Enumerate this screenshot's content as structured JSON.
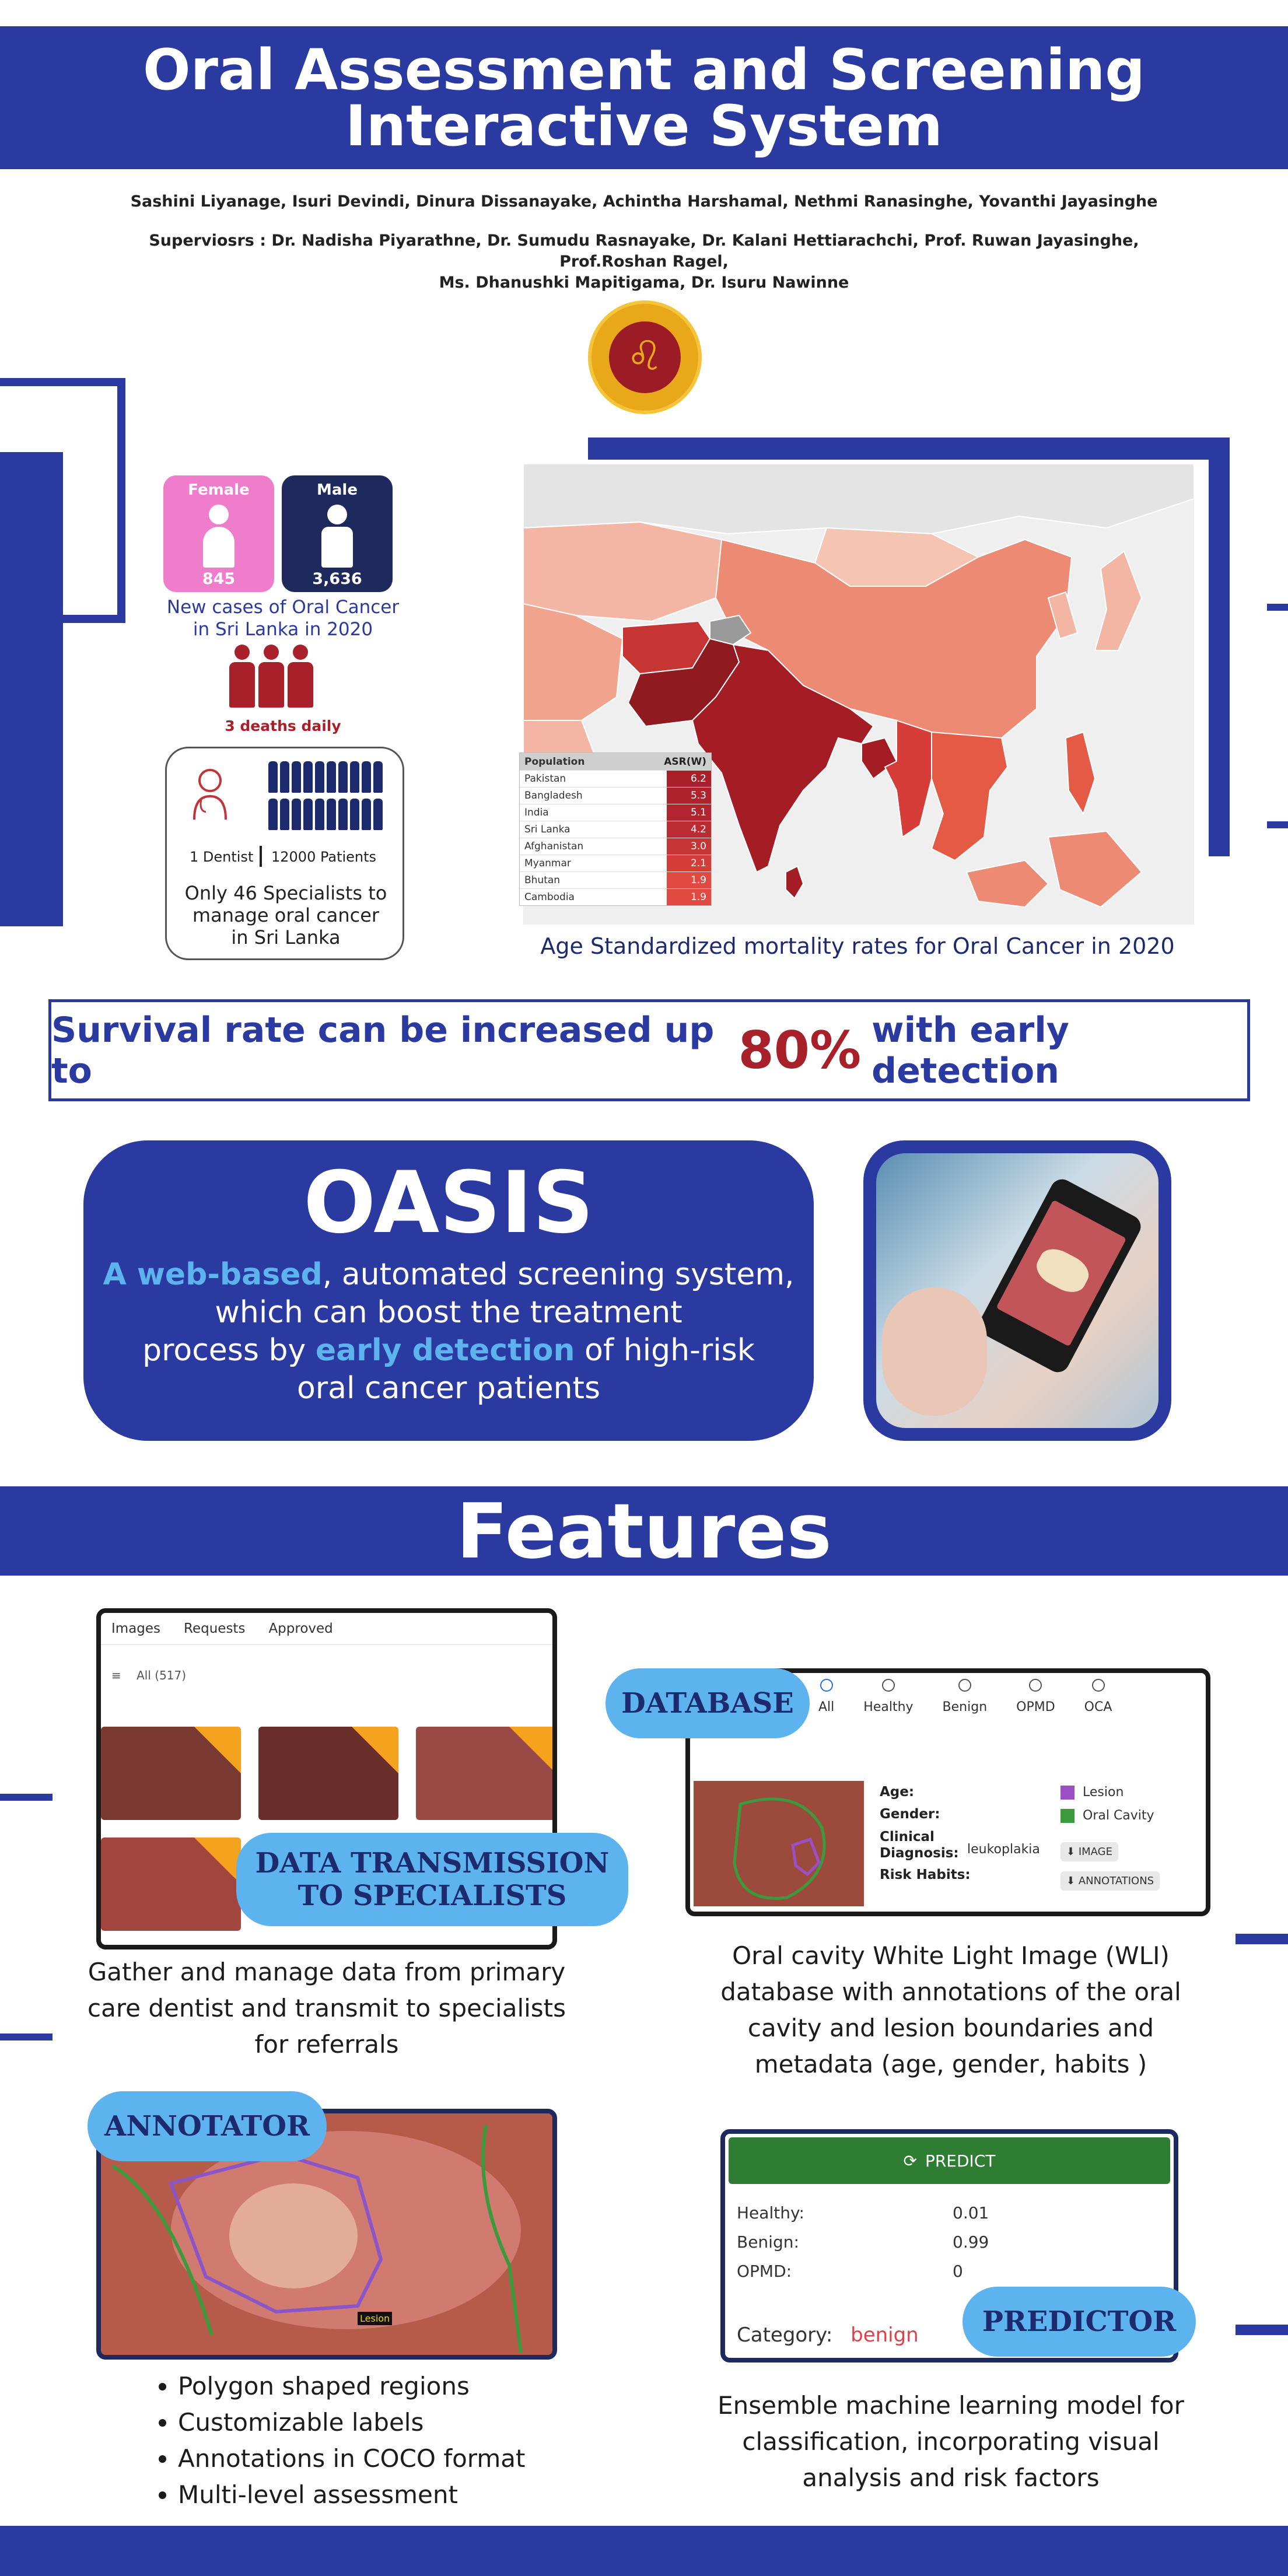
{
  "header": {
    "title_line1": "Oral Assessment and Screening",
    "title_line2": "Interactive System"
  },
  "authors": "Sashini Liyanage, Isuri Devindi, Dinura Dissanayake, Achintha Harshamal, Nethmi Ranasinghe, Yovanthi Jayasinghe",
  "supervisors_line1": "Superviosrs : Dr. Nadisha Piyarathne, Dr. Sumudu Rasnayake, Dr. Kalani Hettiarachchi, Prof. Ruwan Jayasinghe, Prof.Roshan Ragel,",
  "supervisors_line2": "Ms. Dhanushki Mapitigama, Dr. Isuru Nawinne",
  "stats": {
    "female_label": "Female",
    "female_count": "845",
    "male_label": "Male",
    "male_count": "3,636",
    "cases_caption_1": "New cases of Oral Cancer",
    "cases_caption_2": "in Sri Lanka in 2020",
    "deaths": "3 deaths daily",
    "dentist": "1 Dentist",
    "patients": "12000 Patients",
    "specialists_1": "Only 46 Specialists to",
    "specialists_2": "manage oral cancer",
    "specialists_3": "in Sri Lanka"
  },
  "map": {
    "table_header_pop": "Population",
    "table_header_asr": "ASR(W)",
    "rows": [
      {
        "country": "Pakistan",
        "asr": "6.2",
        "color": "#a8202a"
      },
      {
        "country": "Bangladesh",
        "asr": "5.3",
        "color": "#b0222c"
      },
      {
        "country": "India",
        "asr": "5.1",
        "color": "#b42430"
      },
      {
        "country": "Sri Lanka",
        "asr": "4.2",
        "color": "#bc2a32"
      },
      {
        "country": "Afghanistan",
        "asr": "3.0",
        "color": "#c73434"
      },
      {
        "country": "Myanmar",
        "asr": "2.1",
        "color": "#d63c38"
      },
      {
        "country": "Bhutan",
        "asr": "1.9",
        "color": "#e04a40"
      },
      {
        "country": "Cambodia",
        "asr": "1.9",
        "color": "#e04a40"
      }
    ],
    "caption": "Age Standardized mortality rates for Oral Cancer in 2020"
  },
  "survival": {
    "pre": "Survival rate can be increased up to",
    "pct": "80%",
    "post": "with early detection"
  },
  "oasis": {
    "title": "OASIS",
    "hl1": "A web-based",
    "t1": ", automated screening system,",
    "t2": "which can boost the treatment",
    "t3a": "process by ",
    "hl2": "early detection",
    "t3b": " of high-risk",
    "t4": "oral cancer patients"
  },
  "features_title": "Features",
  "data_transmission": {
    "tabs": [
      "Images",
      "Requests",
      "Approved"
    ],
    "filter": "All (517)",
    "pill_1": "DATA TRANSMISSION",
    "pill_2": "TO SPECIALISTS",
    "desc_1": "Gather and manage data from primary",
    "desc_2": "care dentist and transmit to specialists",
    "desc_3": "for referrals"
  },
  "database": {
    "pill": "DATABASE",
    "radios": [
      "All",
      "Healthy",
      "Benign",
      "OPMD",
      "OCA"
    ],
    "age": "Age:",
    "gender": "Gender:",
    "clinical_1": "Clinical",
    "clinical_2": "Diagnosis:",
    "diagnosis": "leukoplakia",
    "risk": "Risk Habits:",
    "legend_lesion": "Lesion",
    "legend_oral": "Oral Cavity",
    "btn_image": "IMAGE",
    "btn_annot": "ANNOTATIONS",
    "lesion_color": "#9b4fc4",
    "oral_color": "#3b9a3b",
    "desc_1": "Oral cavity White Light Image (WLI)",
    "desc_2": "database with annotations of the oral",
    "desc_3": "cavity and lesion boundaries and",
    "desc_4": "metadata (age, gender, habits )"
  },
  "annotator": {
    "pill": "ANNOTATOR",
    "tag": "Lesion",
    "bullets": [
      "Polygon shaped regions",
      "Customizable labels",
      "Annotations in COCO format",
      "Multi-level assessment"
    ]
  },
  "predictor": {
    "btn": "PREDICT",
    "rows": [
      {
        "label": "Healthy:",
        "value": "0.01"
      },
      {
        "label": "Benign:",
        "value": "0.99"
      },
      {
        "label": "OPMD:",
        "value": "0"
      }
    ],
    "category_label": "Category:",
    "category_value": "benign",
    "pill": "PREDICTOR",
    "desc_1": "Ensemble machine learning model for",
    "desc_2": "classification, incorporating visual",
    "desc_3": "analysis and risk factors"
  }
}
